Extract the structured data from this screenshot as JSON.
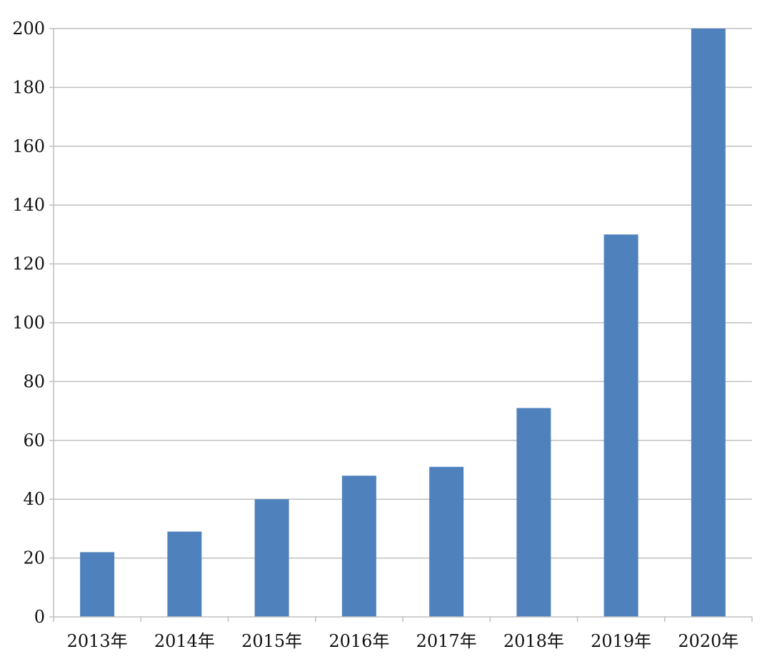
{
  "chart_data": {
    "type": "bar",
    "categories": [
      "2013年",
      "2014年",
      "2015年",
      "2016年",
      "2017年",
      "2018年",
      "2019年",
      "2020年"
    ],
    "values": [
      22,
      29,
      40,
      48,
      51,
      71,
      130,
      200
    ],
    "title": "",
    "xlabel": "",
    "ylabel": "",
    "ylim": [
      0,
      200
    ],
    "yticks": [
      0,
      20,
      40,
      60,
      80,
      100,
      120,
      140,
      160,
      180,
      200
    ],
    "grid": true,
    "legend": "none",
    "bar_color": "#4F81BD",
    "grid_color": "#BFBFBF",
    "axis_color": "#BFBFBF"
  }
}
